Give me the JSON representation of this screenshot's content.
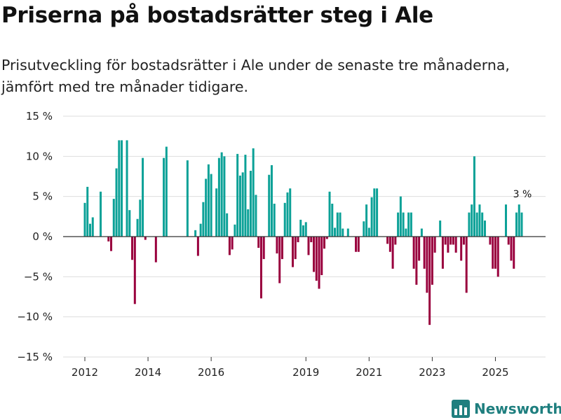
{
  "title": "Priserna på bostadsrätter steg i Ale",
  "subtitle": "Prisutveckling för bostadsrätter i Ale under de senaste tre månaderna, jämfört med tre månader tidigare.",
  "brand": {
    "name": "Newsworthy",
    "color": "#1f7f7f"
  },
  "colors": {
    "positive": "#0ba197",
    "negative": "#99003d",
    "grid": "#dddddd",
    "zero": "#333333"
  },
  "chart_data": {
    "type": "bar",
    "title": "Priserna på bostadsrätter steg i Ale",
    "xlabel": "",
    "ylabel": "",
    "ylim": [
      -15,
      15
    ],
    "y_ticks": [
      15,
      10,
      5,
      0,
      -5,
      -10,
      -15
    ],
    "y_tick_labels": [
      "15 %",
      "10 %",
      "5 %",
      "0 %",
      "−5 %",
      "−10 %",
      "−15 %"
    ],
    "x_ticks": [
      "2012",
      "2014",
      "2016",
      "2019",
      "2021",
      "2023",
      "2025"
    ],
    "start": "2012-01",
    "end": "2025-11",
    "series": [
      {
        "name": "Prisutveckling",
        "values": [
          4.2,
          6.2,
          1.6,
          2.4,
          null,
          null,
          5.6,
          null,
          null,
          -0.6,
          -1.8,
          4.7,
          8.5,
          12.0,
          12.0,
          null,
          12.0,
          3.3,
          -2.9,
          -8.4,
          2.2,
          4.6,
          9.8,
          -0.4,
          null,
          null,
          null,
          -3.2,
          null,
          null,
          9.8,
          11.2,
          null,
          null,
          null,
          null,
          null,
          null,
          null,
          9.5,
          null,
          null,
          0.8,
          -2.4,
          1.6,
          4.3,
          7.2,
          9.0,
          7.8,
          null,
          6.0,
          9.8,
          10.5,
          10.0,
          2.9,
          -2.3,
          -1.6,
          1.5,
          10.3,
          7.6,
          8.0,
          10.2,
          3.4,
          8.2,
          11.0,
          5.2,
          -1.4,
          -7.7,
          -2.8,
          null,
          7.7,
          8.9,
          4.1,
          -2.1,
          -5.8,
          -2.8,
          4.2,
          5.5,
          6.0,
          -3.8,
          -2.8,
          -0.7,
          2.1,
          1.4,
          1.8,
          -2.3,
          -0.7,
          -4.4,
          -5.5,
          -6.5,
          -4.8,
          -1.5,
          -0.3,
          5.6,
          4.1,
          1.1,
          3.0,
          3.0,
          1.0,
          null,
          1.0,
          null,
          null,
          -1.9,
          -1.9,
          null,
          1.9,
          4.0,
          1.1,
          4.9,
          6.0,
          6.0,
          null,
          null,
          null,
          -0.9,
          -1.9,
          -4.0,
          -1.0,
          3.0,
          5.0,
          3.0,
          1.0,
          3.0,
          3.0,
          -4.0,
          -6.0,
          -3.0,
          1.0,
          -4.0,
          -7.0,
          -11.0,
          -6.0,
          -2.0,
          null,
          2.0,
          -4.0,
          -1.0,
          -2.0,
          -1.0,
          -1.0,
          -2.0,
          null,
          -3.0,
          -1.0,
          -7.0,
          3.0,
          4.0,
          10.0,
          3.0,
          4.0,
          3.0,
          2.0,
          null,
          -1.0,
          -4.0,
          -4.0,
          -5.0,
          null,
          null,
          4.0,
          -1.0,
          -3.0,
          -4.0,
          3.0,
          4.0,
          3.0
        ],
        "last_label": "3 %"
      }
    ]
  }
}
